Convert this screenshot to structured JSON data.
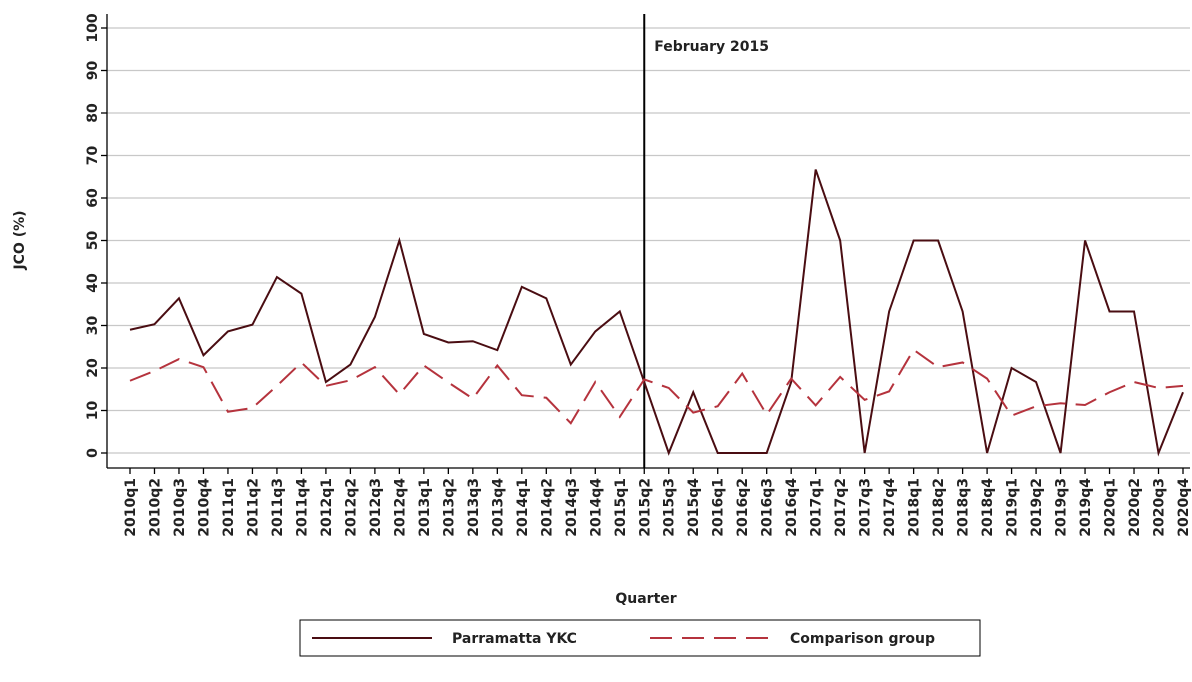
{
  "chart_data": {
    "type": "line",
    "x_label": "Quarter",
    "y_label": "JCO (%)",
    "categories": [
      "2010q1",
      "2010q2",
      "2010q3",
      "2010q4",
      "2011q1",
      "2011q2",
      "2011q3",
      "2011q4",
      "2012q1",
      "2012q2",
      "2012q3",
      "2012q4",
      "2013q1",
      "2013q2",
      "2013q3",
      "2013q4",
      "2014q1",
      "2014q2",
      "2014q3",
      "2014q4",
      "2015q1",
      "2015q2",
      "2015q3",
      "2015q4",
      "2016q1",
      "2016q2",
      "2016q3",
      "2016q4",
      "2017q1",
      "2017q2",
      "2017q3",
      "2017q4",
      "2018q1",
      "2018q2",
      "2018q3",
      "2018q4",
      "2019q1",
      "2019q2",
      "2019q3",
      "2019q4",
      "2020q1",
      "2020q2",
      "2020q3",
      "2020q4"
    ],
    "series": [
      {
        "name": "Parramatta YKC",
        "color": "#4a0d12",
        "dash": "solid",
        "values": [
          29,
          30.3,
          36.4,
          23,
          28.6,
          30.2,
          41.4,
          37.5,
          16.7,
          20.8,
          32,
          50,
          28,
          26,
          26.3,
          24.2,
          39.1,
          36.4,
          20.8,
          28.6,
          33.3,
          16.7,
          0,
          14.3,
          0,
          0,
          0,
          16.7,
          66.7,
          50,
          0,
          33.3,
          50,
          50,
          33.3,
          0,
          20,
          16.7,
          0,
          50,
          33.3,
          33.3,
          0,
          14.3
        ]
      },
      {
        "name": "Comparison group",
        "color": "#b5333d",
        "dash": "dashed",
        "values": [
          17,
          19.3,
          22.1,
          20.2,
          9.7,
          10.6,
          15.8,
          21.3,
          15.8,
          17.1,
          20.2,
          13.8,
          20.6,
          16.6,
          12.8,
          20.6,
          13.6,
          13,
          7,
          16.7,
          8.5,
          17.3,
          15.3,
          9.5,
          11,
          18.7,
          9,
          17.5,
          11.2,
          17.9,
          12.5,
          14.5,
          24.3,
          20.2,
          21.3,
          17.5,
          8.8,
          11,
          11.7,
          11.3,
          14.3,
          16.7,
          15.3,
          15.8
        ]
      }
    ],
    "annotations": [
      {
        "text": "February 2015",
        "x": "2015q2"
      }
    ],
    "ylim": [
      0,
      100
    ],
    "yticks": [
      0,
      10,
      20,
      30,
      40,
      50,
      60,
      70,
      80,
      90,
      100
    ],
    "grid": true
  }
}
